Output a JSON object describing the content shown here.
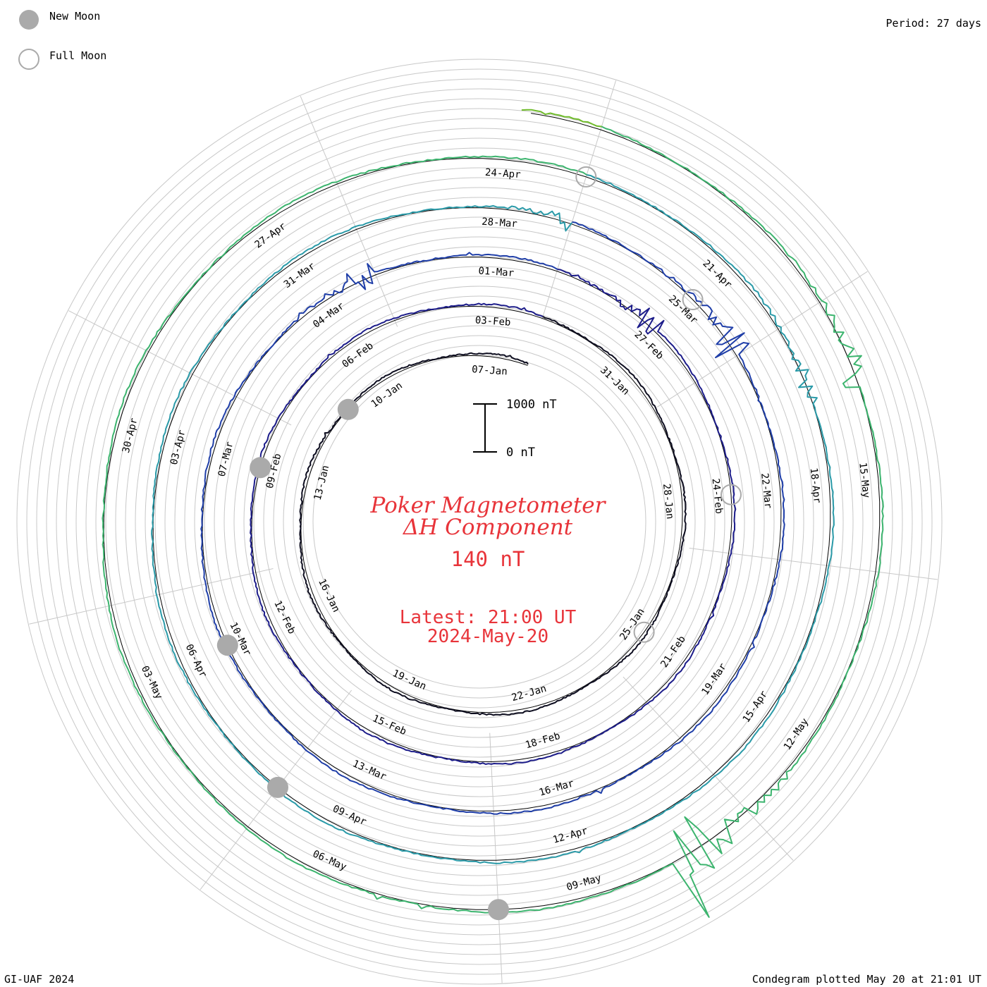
{
  "legend": {
    "new_moon_label": "New Moon",
    "full_moon_label": "Full Moon",
    "new_moon_color": "#aaaaaa",
    "full_moon_color": "#aaaaaa"
  },
  "period_text": "Period: 27 days",
  "footer_left": "GI-UAF 2024",
  "footer_right": "Condegram plotted May 20 at 21:01 UT",
  "scale_bar": {
    "top_label": "1000 nT",
    "bottom_label": "0 nT"
  },
  "center": {
    "title_line1": "Poker Magnetometer",
    "title_line2": "ΔH Component",
    "value": "140 nT",
    "latest_line1": "Latest: 21:00 UT",
    "latest_line2": "2024-May-20"
  },
  "colors": {
    "title": "#e8343a",
    "grid": "#c8c8c8",
    "moon": "#aaaaaa",
    "rotations": [
      "#0d0d1f",
      "#1c1c8a",
      "#1f3ea8",
      "#2a9aa8",
      "#3cb46e",
      "#6fbb2a",
      "#b5b51e",
      "#c8871a",
      "#c84d1a",
      "#c8281a"
    ]
  },
  "chart_data": {
    "type": "line",
    "chart_style": "polar condegram (27-day rotations drawn as concentric spiral turns)",
    "period_days": 27,
    "scale_nT": 1000,
    "grid": true,
    "rotation_date_labels": [
      [
        "07-Jan",
        "10-Jan",
        "13-Jan",
        "16-Jan",
        "19-Jan",
        "22-Jan",
        "25-Jan",
        "28-Jan",
        "31-Jan"
      ],
      [
        "03-Feb",
        "06-Feb",
        "09-Feb",
        "12-Feb",
        "15-Feb",
        "18-Feb",
        "21-Feb",
        "24-Feb",
        "27-Feb"
      ],
      [
        "01-Mar",
        "04-Mar",
        "07-Mar",
        "10-Mar",
        "13-Mar",
        "16-Mar",
        "19-Mar",
        "22-Mar",
        "25-Mar"
      ],
      [
        "28-Mar",
        "31-Mar",
        "03-Apr",
        "06-Apr",
        "09-Apr",
        "12-Apr",
        "15-Apr",
        "18-Apr",
        "21-Apr"
      ],
      [
        "24-Apr",
        "27-Apr",
        "30-Apr",
        "03-May",
        "06-May",
        "09-May",
        "12-May",
        "15-May"
      ]
    ],
    "new_moons": [
      "2024-01-11",
      "2024-02-09",
      "2024-03-10",
      "2024-04-08",
      "2024-05-08"
    ],
    "full_moons": [
      "2024-01-25",
      "2024-02-24",
      "2024-03-25",
      "2024-04-23"
    ],
    "latest": "2024-05-20 21:00 UT",
    "latest_value_nT": 140,
    "disturbances": [
      {
        "start": "2024-02-27",
        "level_nT": 500
      },
      {
        "start": "2024-03-03",
        "level_nT": 400
      },
      {
        "start": "2024-03-24",
        "level_nT": 600
      },
      {
        "start": "2024-03-27",
        "level_nT": 250
      },
      {
        "start": "2024-04-19",
        "level_nT": 500
      },
      {
        "start": "2024-05-10",
        "level_nT": 1500
      },
      {
        "start": "2024-05-16",
        "level_nT": 500
      }
    ]
  }
}
